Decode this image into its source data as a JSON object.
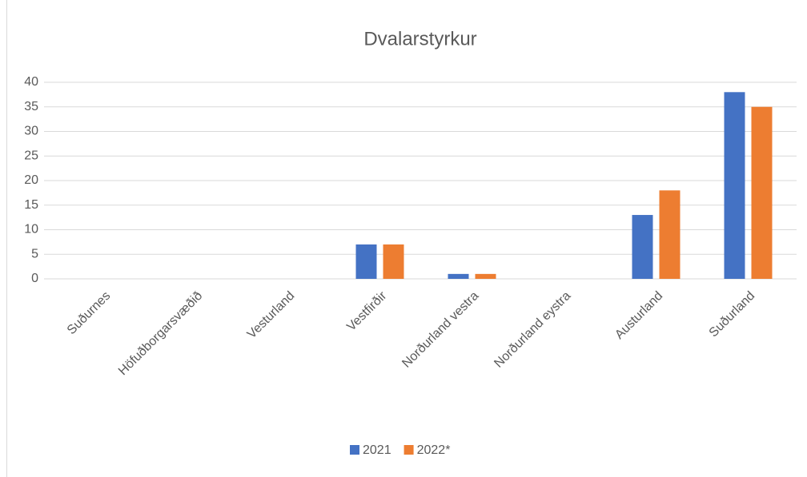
{
  "chart_data": {
    "type": "bar",
    "title": "Dvalarstyrkur",
    "categories": [
      "Suðurnes",
      "Höfuðborgarsvæðið",
      "Vesturland",
      "Vestfirðir",
      "Norðurland vestra",
      "Norðurland eystra",
      "Austurland",
      "Suðurland"
    ],
    "series": [
      {
        "name": "2021",
        "color": "#4472c4",
        "values": [
          0,
          0,
          0,
          7,
          1,
          0,
          13,
          38
        ]
      },
      {
        "name": "2022*",
        "color": "#ed7d31",
        "values": [
          0,
          0,
          0,
          7,
          1,
          0,
          18,
          35
        ]
      }
    ],
    "ylim": [
      0,
      40
    ],
    "yticks": [
      0,
      5,
      10,
      15,
      20,
      25,
      30,
      35,
      40
    ],
    "grid": true,
    "legend": "bottom"
  }
}
